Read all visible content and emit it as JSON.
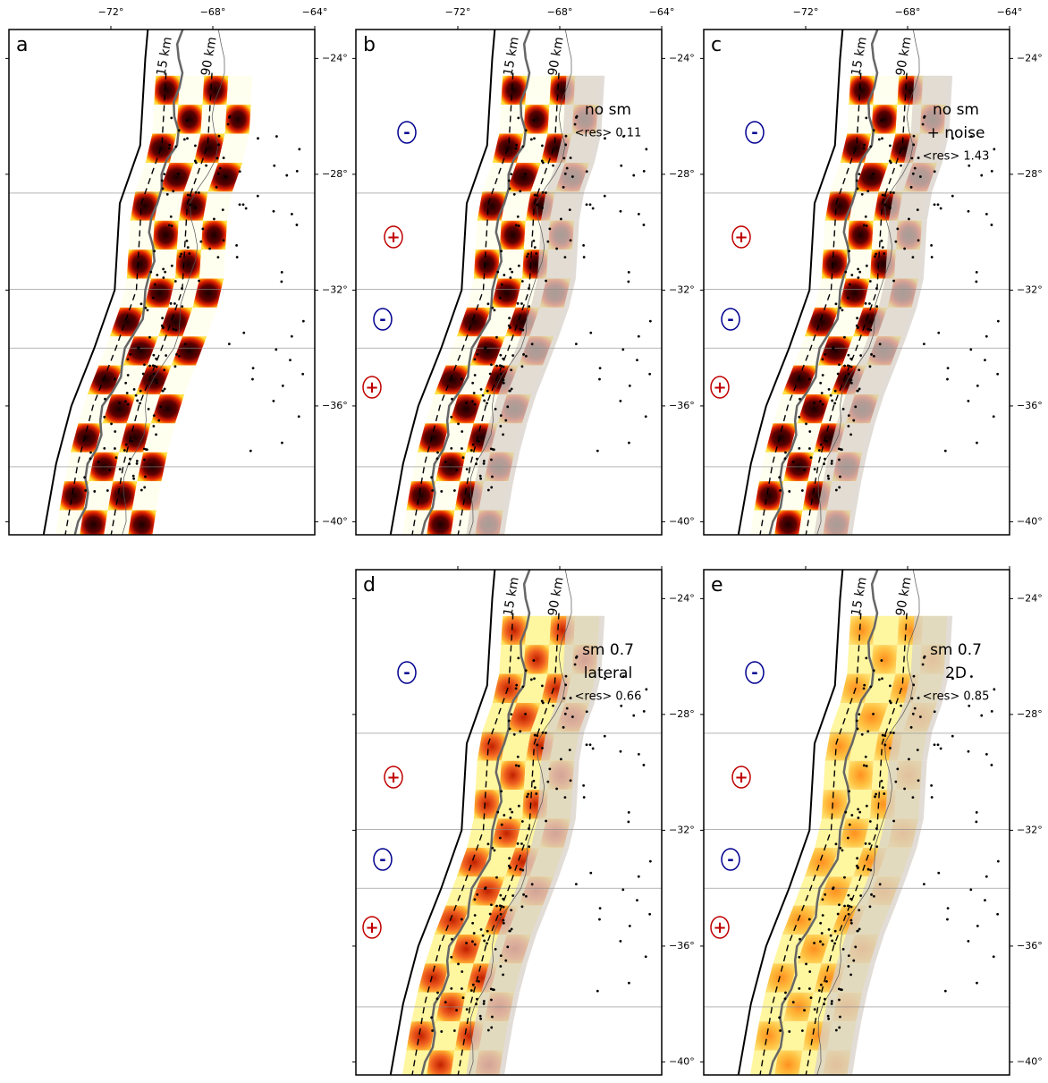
{
  "lon_ticks": [
    {
      "value": -72,
      "label": "−72°"
    },
    {
      "value": -68,
      "label": "−68°"
    },
    {
      "value": -64,
      "label": "−64°"
    }
  ],
  "lat_ticks": [
    {
      "value": -24,
      "label": "−24°"
    },
    {
      "value": -28,
      "label": "−28°"
    },
    {
      "value": -32,
      "label": "−32°"
    },
    {
      "value": -36,
      "label": "−36°"
    },
    {
      "value": -40,
      "label": "−40°"
    }
  ],
  "panels": [
    {
      "label": "a",
      "contour_labels": [
        "15 km",
        "90 km"
      ],
      "annotations": [],
      "signs": []
    },
    {
      "label": "b",
      "contour_labels": [
        "15 km",
        "90 km"
      ],
      "annotations": [
        "no sm",
        "<res> 0.11"
      ],
      "signs": [
        "-",
        "+",
        "-",
        "+"
      ]
    },
    {
      "label": "c",
      "contour_labels": [
        "15 km",
        "90 km"
      ],
      "annotations": [
        "no sm",
        "+ noise",
        "<res> 1.43"
      ],
      "signs": [
        "-",
        "+",
        "-",
        "+"
      ]
    },
    {
      "label": "d",
      "contour_labels": [
        "15 km",
        "90 km"
      ],
      "annotations": [
        "sm 0.7",
        "lateral",
        "<res> 0.66"
      ],
      "signs": [
        "-",
        "+",
        "-",
        "+"
      ]
    },
    {
      "label": "e",
      "contour_labels": [
        "15 km",
        "90 km"
      ],
      "annotations": [
        "sm 0.7",
        "2D",
        "<res> 0.85"
      ],
      "signs": [
        "-",
        "+",
        "-",
        "+"
      ]
    }
  ]
}
